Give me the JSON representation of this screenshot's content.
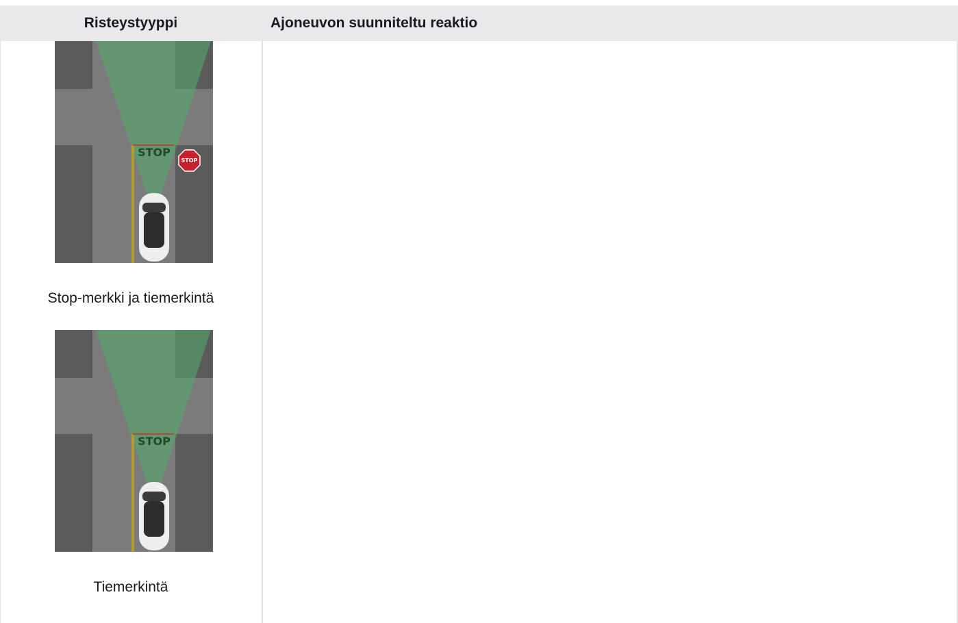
{
  "table": {
    "headers": [
      "Risteystyyppi",
      "Ajoneuvon suunniteltu reaktio"
    ],
    "rows": [
      {
        "caption": "Stop-merkki ja tiemerkintä",
        "road_marking": "STOP",
        "sign": "STOP"
      },
      {
        "caption": "Tiemerkintä",
        "road_marking": "STOP"
      }
    ]
  }
}
